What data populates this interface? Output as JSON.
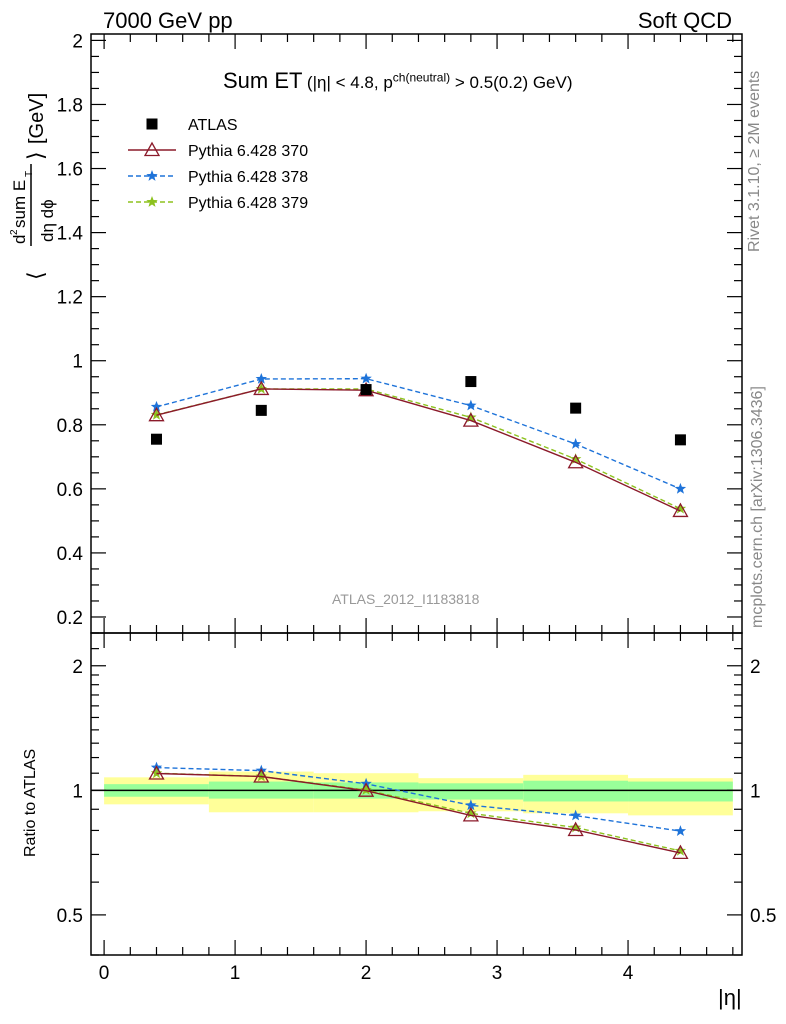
{
  "header": {
    "left": "7000 GeV pp",
    "right": "Soft QCD"
  },
  "side_labels": {
    "rivet": "Rivet 3.1.10, ≥ 2M events",
    "arxiv": "mcplots.cern.ch [arXiv:1306.3436]"
  },
  "chart_data": [
    {
      "type": "scatter",
      "title_main": "Sum ET",
      "title_cond": "(|η| < 4.8, p",
      "title_sup": "ch(neutral)",
      "title_tail": " > 0.5(0.2) GeV)",
      "ylabel": "⟨ d²sum E_T / dη dϕ ⟩ [GeV]",
      "ylim": [
        0.15,
        2.02
      ],
      "xlim": [
        -0.1,
        4.87
      ],
      "watermark": "ATLAS_2012_I1183818",
      "yticks": [
        "0.2",
        "0.4",
        "0.6",
        "0.8",
        "1",
        "1.2",
        "1.4",
        "1.6",
        "1.8",
        "2"
      ],
      "x": [
        0.4,
        1.2,
        2.0,
        2.8,
        3.6,
        4.4
      ],
      "series": [
        {
          "name": "ATLAS",
          "color": "#000000",
          "marker": "square",
          "values": [
            0.755,
            0.845,
            0.91,
            0.935,
            0.852,
            0.753
          ]
        },
        {
          "name": "Pythia 6.428 370",
          "color": "#8b1a2a",
          "marker": "triangle",
          "style": "solid",
          "values": [
            0.83,
            0.912,
            0.908,
            0.813,
            0.683,
            0.531
          ]
        },
        {
          "name": "Pythia 6.428 378",
          "color": "#1e73d9",
          "marker": "star",
          "style": "dashed",
          "values": [
            0.856,
            0.943,
            0.944,
            0.86,
            0.74,
            0.6
          ]
        },
        {
          "name": "Pythia 6.428 379",
          "color": "#8dc21f",
          "marker": "star",
          "style": "dashed",
          "values": [
            0.831,
            0.912,
            0.912,
            0.823,
            0.693,
            0.538
          ]
        }
      ],
      "legend": "top-left"
    },
    {
      "type": "line",
      "ylabel": "Ratio to ATLAS",
      "xlabel": "|η|",
      "ylim": [
        0.4,
        2.4
      ],
      "log_y": true,
      "xticks": [
        "0",
        "1",
        "2",
        "3",
        "4"
      ],
      "yticks": [
        "0.5",
        "1",
        "2"
      ],
      "x": [
        0.4,
        1.2,
        2.0,
        2.8,
        3.6,
        4.4
      ],
      "bands": [
        {
          "x0": 0.0,
          "x1": 0.8,
          "stat": [
            0.965,
            1.035
          ],
          "total": [
            0.925,
            1.075
          ]
        },
        {
          "x0": 0.8,
          "x1": 1.6,
          "stat": [
            0.955,
            1.05
          ],
          "total": [
            0.885,
            1.11
          ]
        },
        {
          "x0": 1.6,
          "x1": 2.4,
          "stat": [
            0.955,
            1.045
          ],
          "total": [
            0.885,
            1.1
          ]
        },
        {
          "x0": 2.4,
          "x1": 3.2,
          "stat": [
            0.95,
            1.04
          ],
          "total": [
            0.89,
            1.07
          ]
        },
        {
          "x0": 3.2,
          "x1": 4.0,
          "stat": [
            0.94,
            1.055
          ],
          "total": [
            0.88,
            1.09
          ]
        },
        {
          "x0": 4.0,
          "x1": 4.8,
          "stat": [
            0.94,
            1.05
          ],
          "total": [
            0.87,
            1.07
          ]
        }
      ],
      "band_colors": {
        "total": "#ffff99",
        "stat": "#99ff99"
      },
      "series": [
        {
          "name": "Pythia 6.428 370",
          "color": "#8b1a2a",
          "marker": "triangle",
          "style": "solid",
          "values": [
            1.098,
            1.08,
            0.998,
            0.87,
            0.802,
            0.706
          ]
        },
        {
          "name": "Pythia 6.428 378",
          "color": "#1e73d9",
          "marker": "star",
          "style": "dashed",
          "values": [
            1.135,
            1.116,
            1.037,
            0.92,
            0.869,
            0.797
          ]
        },
        {
          "name": "Pythia 6.428 379",
          "color": "#8dc21f",
          "marker": "star",
          "style": "dashed",
          "values": [
            1.1,
            1.08,
            1.002,
            0.88,
            0.813,
            0.714
          ]
        }
      ]
    }
  ]
}
